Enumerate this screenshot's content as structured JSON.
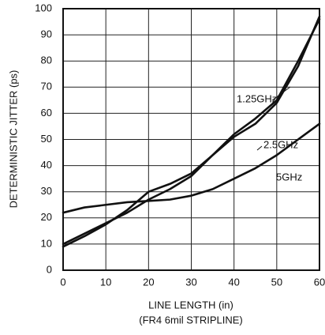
{
  "chart_data": {
    "type": "line",
    "ylabel": "DETERMINISTIC JITTER (ps)",
    "xlabel": "LINE LENGTH (in)",
    "xlabel_note": "(FR4 6mil STRIPLINE)",
    "x": [
      0,
      5,
      10,
      15,
      20,
      25,
      30,
      35,
      40,
      45,
      50,
      55,
      60
    ],
    "series": [
      {
        "name": "1.25GHz",
        "color": "#111111",
        "values": [
          9,
          13,
          17.5,
          23,
          30,
          33,
          37,
          44,
          51,
          56,
          64,
          78,
          97
        ]
      },
      {
        "name": "2.5GHz",
        "color": "#111111",
        "values": [
          10,
          14,
          18,
          22,
          27,
          31,
          36,
          44,
          52,
          58,
          65,
          80,
          96
        ]
      },
      {
        "name": "5GHz",
        "color": "#111111",
        "values": [
          22,
          24,
          25,
          26,
          26.5,
          27,
          28.5,
          31,
          35,
          39,
          44,
          50,
          56
        ]
      }
    ],
    "xlim": [
      0,
      60
    ],
    "xticks": [
      0,
      10,
      20,
      30,
      40,
      50,
      60
    ],
    "ylim": [
      0,
      100
    ],
    "yticks": [
      0,
      10,
      20,
      30,
      40,
      50,
      60,
      70,
      80,
      90,
      100
    ],
    "grid": true
  }
}
